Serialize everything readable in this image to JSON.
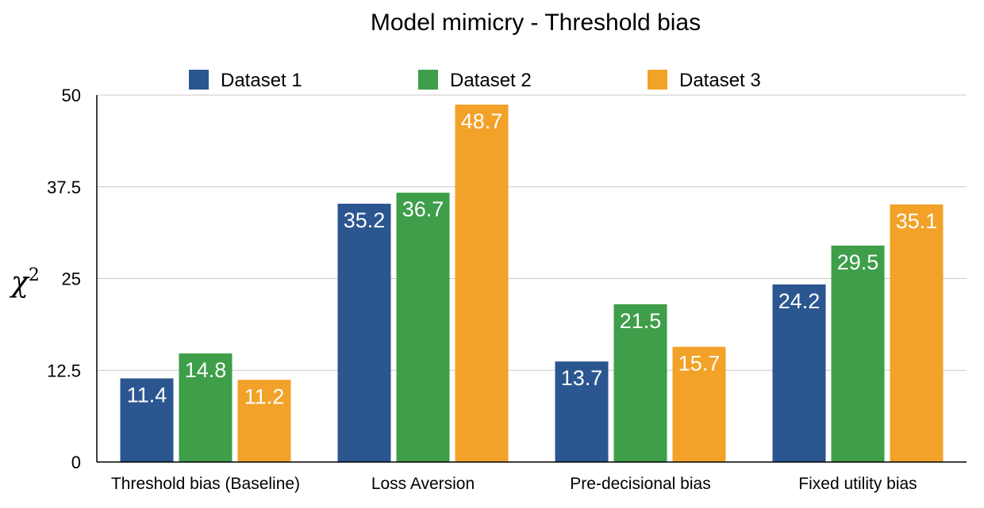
{
  "chart_data": {
    "type": "bar",
    "title": "Model mimicry - Threshold bias",
    "ylabel": "χ",
    "ylabel_superscript": "2",
    "xlabel": "",
    "categories": [
      "Threshold bias (Baseline)",
      "Loss Aversion",
      "Pre-decisional bias",
      "Fixed utility bias"
    ],
    "series": [
      {
        "name": "Dataset 1",
        "color": "#2b5690",
        "values": [
          11.4,
          35.2,
          13.7,
          24.2
        ]
      },
      {
        "name": "Dataset 2",
        "color": "#3e9e49",
        "values": [
          14.8,
          36.7,
          21.5,
          29.5
        ]
      },
      {
        "name": "Dataset 3",
        "color": "#f2a228",
        "values": [
          11.2,
          48.7,
          15.7,
          35.1
        ]
      }
    ],
    "ylim": [
      0,
      50
    ],
    "yticks": [
      0,
      12.5,
      25,
      37.5,
      50
    ],
    "ytick_labels": [
      "0",
      "12.5",
      "25",
      "37.5",
      "50"
    ],
    "grid": true,
    "legend_position": "top"
  }
}
